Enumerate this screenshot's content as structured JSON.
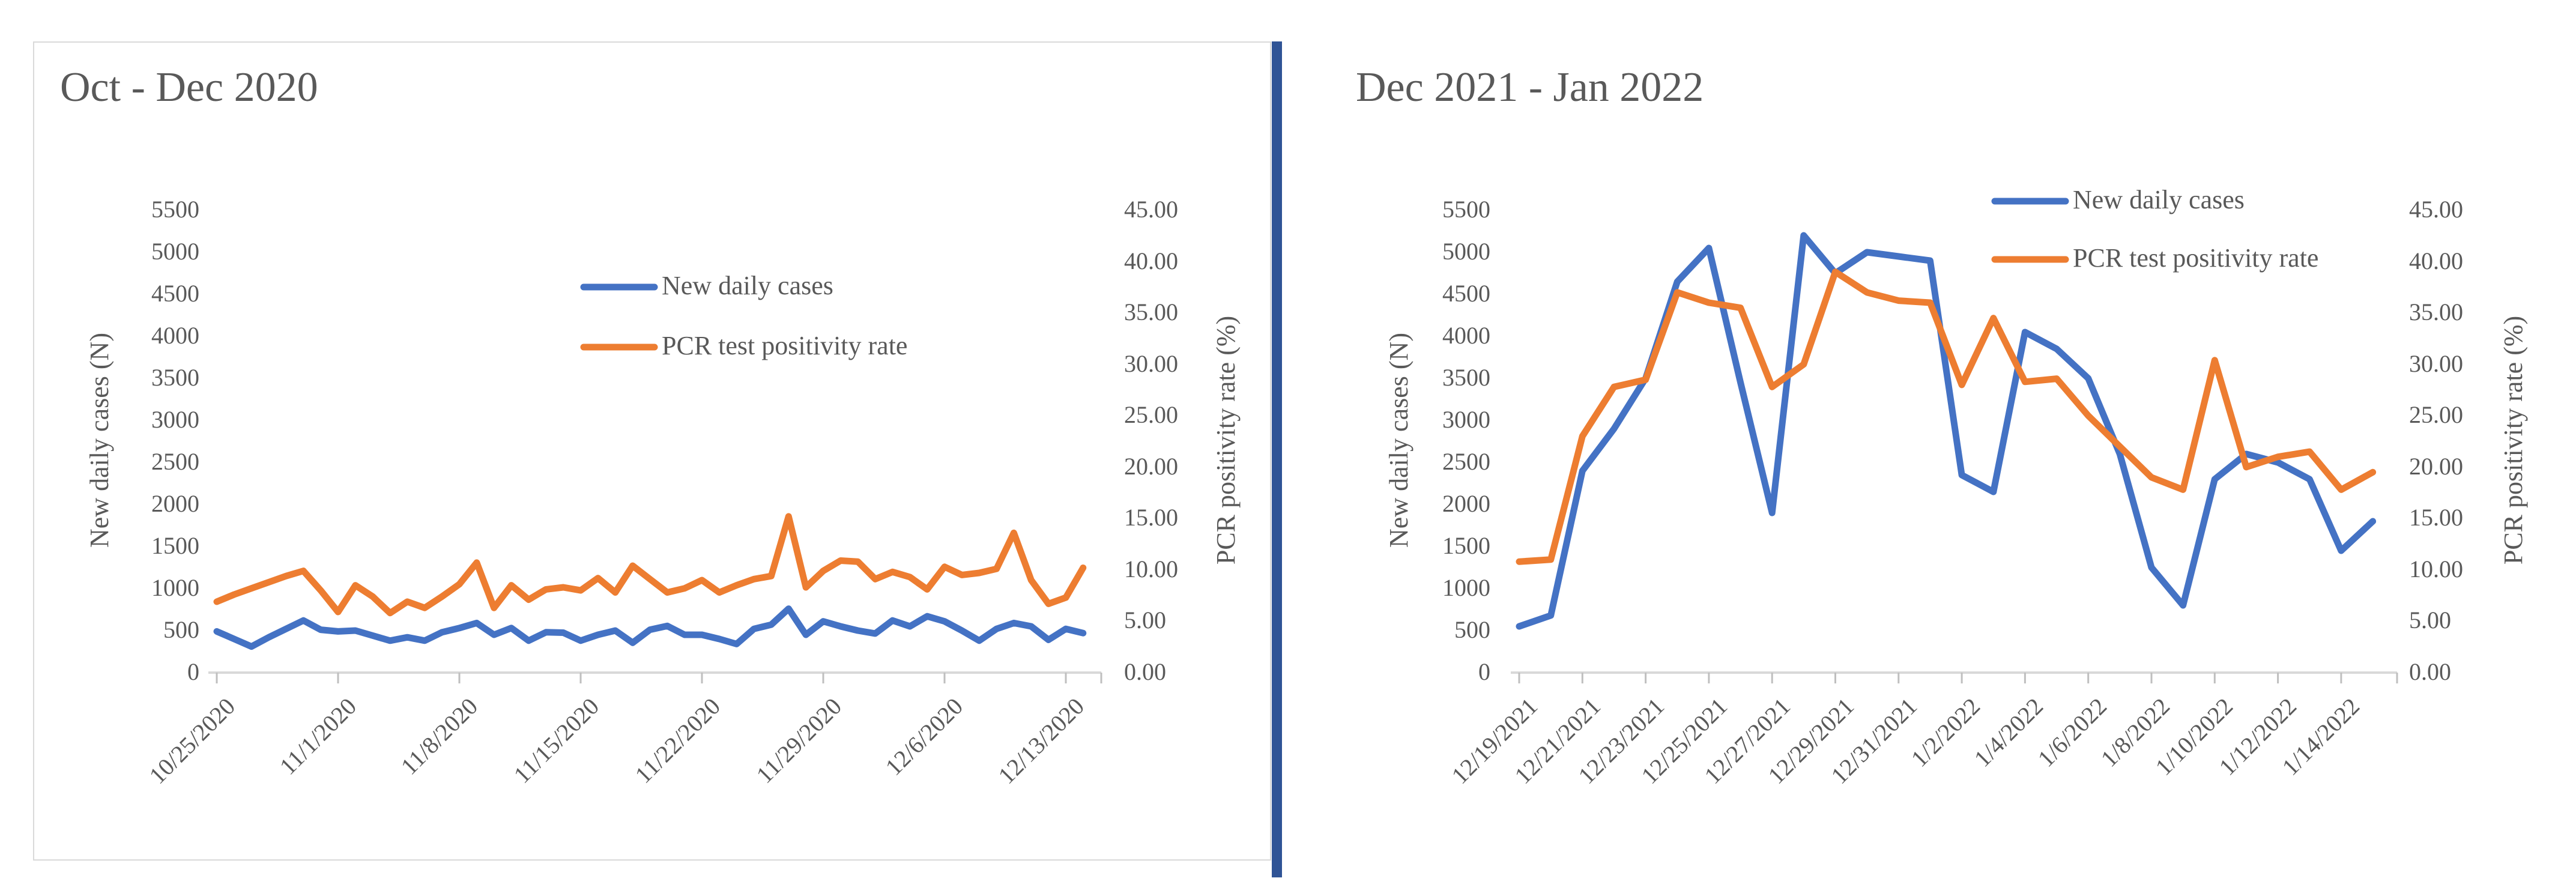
{
  "page": {
    "background": "#ffffff",
    "text_color": "#595959",
    "divider_color": "#2f5496",
    "axis_line_color": "#d9d9d9",
    "tick_mark_color": "#bfbfbf"
  },
  "charts": [
    {
      "title": "Oct - Dec 2020",
      "y_left_axis": {
        "title": "New daily cases (N)",
        "tick_labels": [
          "0",
          "500",
          "1000",
          "1500",
          "2000",
          "2500",
          "3000",
          "3500",
          "4000",
          "4500",
          "5000",
          "5500"
        ]
      },
      "y_right_axis": {
        "title": "PCR positivity rate (%)",
        "tick_labels": [
          "0.00",
          "5.00",
          "10.00",
          "15.00",
          "20.00",
          "25.00",
          "30.00",
          "35.00",
          "40.00",
          "45.00"
        ]
      },
      "x_tick_labels": [
        "10/25/2020",
        "11/1/2020",
        "11/8/2020",
        "11/15/2020",
        "11/22/2020",
        "11/29/2020",
        "12/6/2020",
        "12/13/2020"
      ],
      "legend": [
        {
          "label": "New daily cases",
          "color": "#4472c4"
        },
        {
          "label": "PCR test positivity rate",
          "color": "#ed7d31"
        }
      ]
    },
    {
      "title": "Dec 2021 - Jan 2022",
      "y_left_axis": {
        "title": "New daily cases (N)",
        "tick_labels": [
          "0",
          "500",
          "1000",
          "1500",
          "2000",
          "2500",
          "3000",
          "3500",
          "4000",
          "4500",
          "5000",
          "5500"
        ]
      },
      "y_right_axis": {
        "title": "PCR positivity rate (%)",
        "tick_labels": [
          "0.00",
          "5.00",
          "10.00",
          "15.00",
          "20.00",
          "25.00",
          "30.00",
          "35.00",
          "40.00",
          "45.00"
        ]
      },
      "x_tick_labels": [
        "12/19/2021",
        "12/21/2021",
        "12/23/2021",
        "12/25/2021",
        "12/27/2021",
        "12/29/2021",
        "12/31/2021",
        "1/2/2022",
        "1/4/2022",
        "1/6/2022",
        "1/8/2022",
        "1/10/2022",
        "1/12/2022",
        "1/14/2022"
      ],
      "legend": [
        {
          "label": "New daily cases",
          "color": "#4472c4"
        },
        {
          "label": "PCR test positivity rate",
          "color": "#ed7d31"
        }
      ]
    }
  ],
  "chart_data": [
    {
      "type": "line",
      "title": "Oct - Dec 2020",
      "xlabel": "",
      "ylabel_left": "New daily cases (N)",
      "ylabel_right": "PCR positivity rate (%)",
      "y_left_range": [
        0,
        5500
      ],
      "y_right_range": [
        0,
        45
      ],
      "grid": false,
      "legend_position": "inside-top-right",
      "x": [
        "10/25/2020",
        "10/26/2020",
        "10/27/2020",
        "10/28/2020",
        "10/29/2020",
        "10/30/2020",
        "10/31/2020",
        "11/1/2020",
        "11/2/2020",
        "11/3/2020",
        "11/4/2020",
        "11/5/2020",
        "11/6/2020",
        "11/7/2020",
        "11/8/2020",
        "11/9/2020",
        "11/10/2020",
        "11/11/2020",
        "11/12/2020",
        "11/13/2020",
        "11/14/2020",
        "11/15/2020",
        "11/16/2020",
        "11/17/2020",
        "11/18/2020",
        "11/19/2020",
        "11/20/2020",
        "11/21/2020",
        "11/22/2020",
        "11/23/2020",
        "11/24/2020",
        "11/25/2020",
        "11/26/2020",
        "11/27/2020",
        "11/28/2020",
        "11/29/2020",
        "11/30/2020",
        "12/1/2020",
        "12/2/2020",
        "12/3/2020",
        "12/4/2020",
        "12/5/2020",
        "12/6/2020",
        "12/7/2020",
        "12/8/2020",
        "12/9/2020",
        "12/10/2020",
        "12/11/2020",
        "12/12/2020",
        "12/13/2020",
        "12/14/2020"
      ],
      "series": [
        {
          "name": "New daily cases",
          "axis": "left",
          "color": "#4472c4",
          "values": [
            490,
            400,
            310,
            420,
            520,
            620,
            510,
            490,
            500,
            440,
            380,
            420,
            380,
            480,
            530,
            590,
            450,
            530,
            380,
            480,
            475,
            380,
            450,
            500,
            355,
            510,
            555,
            450,
            450,
            400,
            340,
            520,
            570,
            760,
            450,
            610,
            550,
            500,
            465,
            620,
            550,
            670,
            610,
            500,
            380,
            520,
            590,
            550,
            390,
            520,
            470
          ]
        },
        {
          "name": "PCR test positivity rate",
          "axis": "right",
          "color": "#ed7d31",
          "values": [
            6.9,
            7.6,
            8.2,
            8.8,
            9.4,
            9.9,
            8.0,
            5.9,
            8.5,
            7.4,
            5.8,
            6.9,
            6.3,
            7.4,
            8.6,
            10.7,
            6.3,
            8.5,
            7.1,
            8.1,
            8.3,
            8.0,
            9.2,
            7.8,
            10.4,
            9.1,
            7.8,
            8.2,
            9.0,
            7.8,
            8.5,
            9.1,
            9.4,
            15.2,
            8.3,
            9.9,
            10.9,
            10.8,
            9.1,
            9.8,
            9.3,
            8.1,
            10.3,
            9.5,
            9.7,
            10.1,
            13.6,
            9.0,
            6.7,
            7.3,
            10.2
          ]
        }
      ]
    },
    {
      "type": "line",
      "title": "Dec 2021 - Jan 2022",
      "xlabel": "",
      "ylabel_left": "New daily cases (N)",
      "ylabel_right": "PCR positivity rate (%)",
      "y_left_range": [
        0,
        5500
      ],
      "y_right_range": [
        0,
        45
      ],
      "grid": false,
      "legend_position": "inside-top-right",
      "x": [
        "12/19/2021",
        "12/20/2021",
        "12/21/2021",
        "12/22/2021",
        "12/23/2021",
        "12/24/2021",
        "12/25/2021",
        "12/26/2021",
        "12/27/2021",
        "12/28/2021",
        "12/29/2021",
        "12/30/2021",
        "12/31/2021",
        "1/1/2022",
        "1/2/2022",
        "1/3/2022",
        "1/4/2022",
        "1/5/2022",
        "1/6/2022",
        "1/7/2022",
        "1/8/2022",
        "1/9/2022",
        "1/10/2022",
        "1/11/2022",
        "1/12/2022",
        "1/13/2022",
        "1/14/2022",
        "1/15/2022"
      ],
      "series": [
        {
          "name": "New daily cases",
          "axis": "left",
          "color": "#4472c4",
          "values": [
            550,
            680,
            2400,
            2900,
            3500,
            4650,
            5050,
            3450,
            1900,
            5200,
            4750,
            5000,
            4950,
            4900,
            2350,
            2150,
            4050,
            3850,
            3500,
            2600,
            1250,
            800,
            2300,
            2600,
            2500,
            2300,
            1450,
            1800
          ]
        },
        {
          "name": "PCR test positivity rate",
          "axis": "right",
          "color": "#ed7d31",
          "values": [
            10.8,
            11.0,
            23.0,
            27.8,
            28.5,
            37.0,
            36.0,
            35.5,
            27.8,
            30.0,
            39.0,
            37.0,
            36.2,
            36.0,
            28.0,
            34.5,
            28.3,
            28.6,
            25.0,
            22.0,
            19.0,
            17.8,
            30.4,
            20.0,
            21.0,
            21.5,
            17.8,
            19.5
          ]
        }
      ]
    }
  ]
}
